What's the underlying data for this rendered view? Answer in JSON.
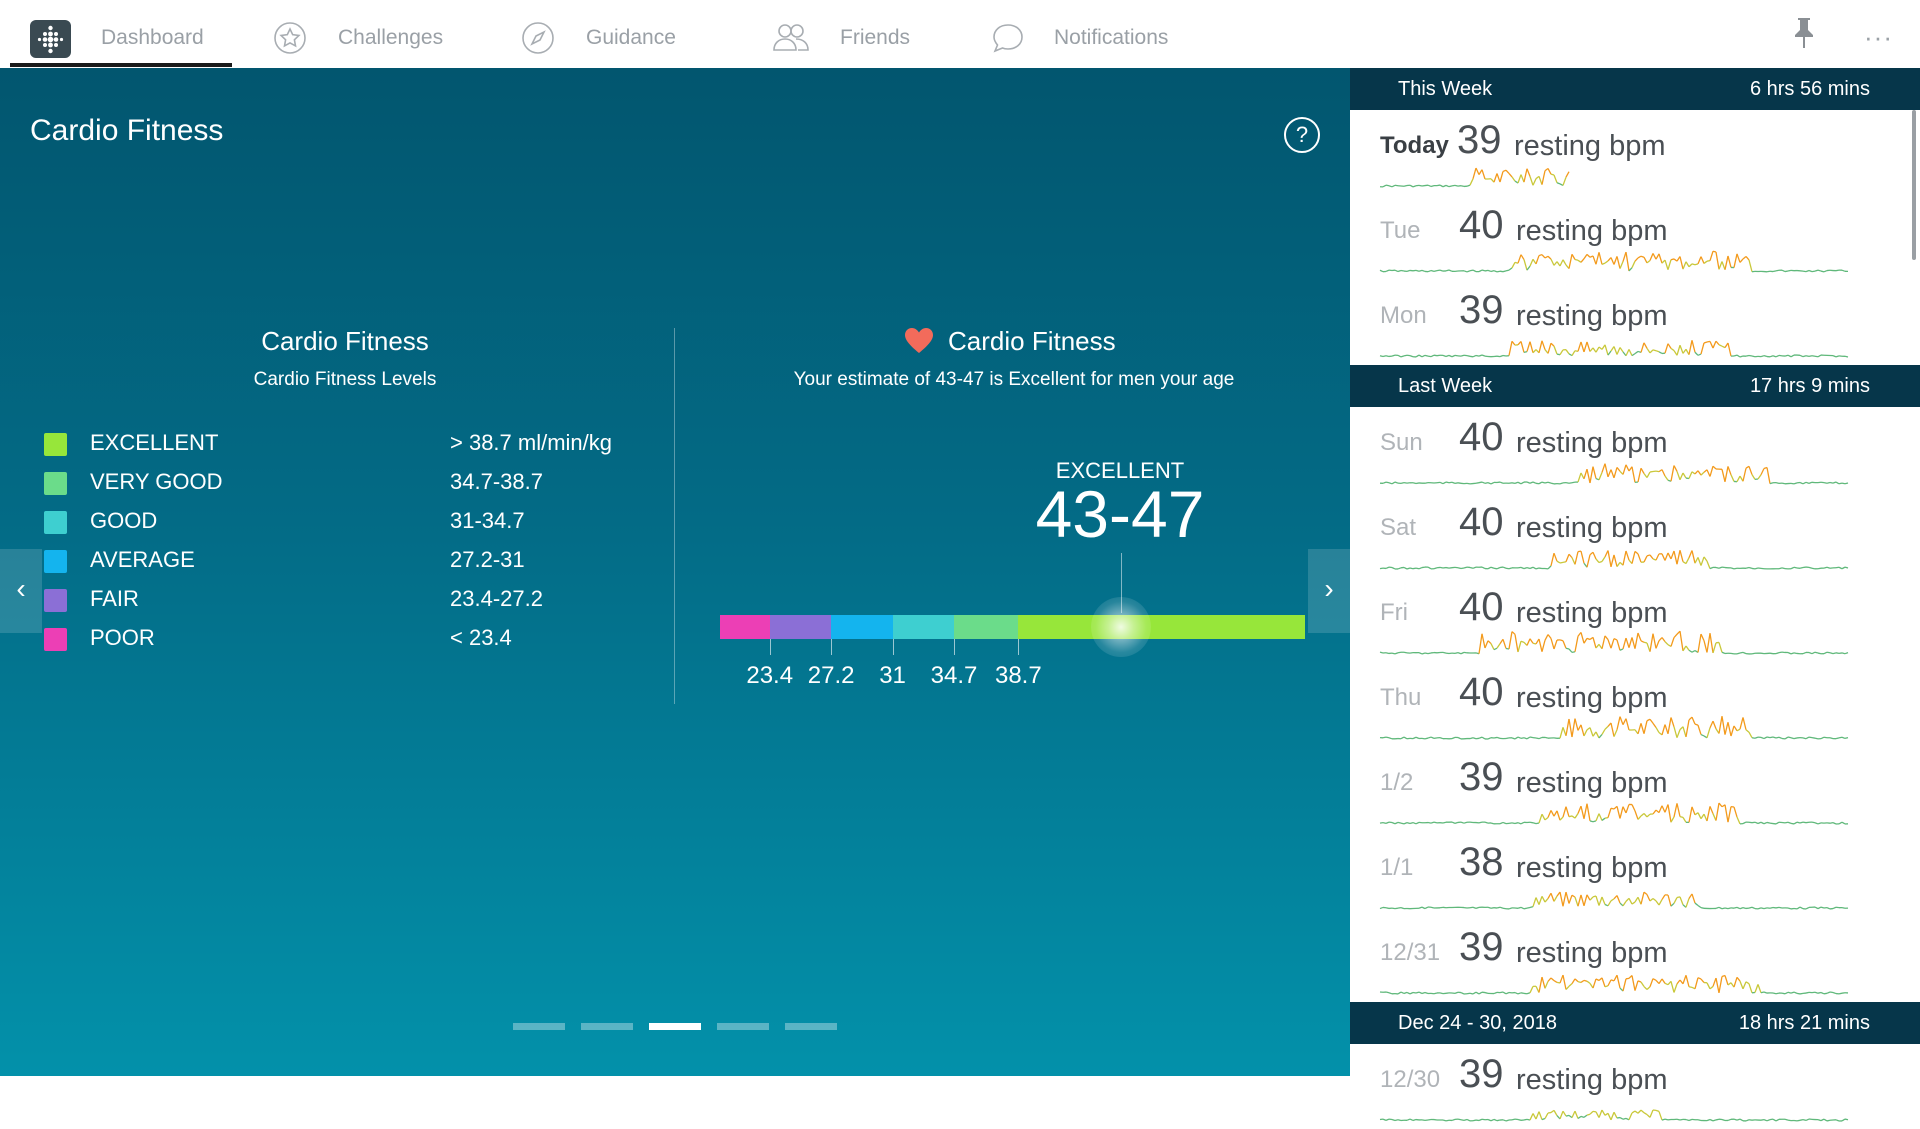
{
  "nav": {
    "items": [
      {
        "label": "Dashboard",
        "icon": "fitbit-logo-icon"
      },
      {
        "label": "Challenges",
        "icon": "star-badge-icon"
      },
      {
        "label": "Guidance",
        "icon": "compass-icon"
      },
      {
        "label": "Friends",
        "icon": "friends-icon"
      },
      {
        "label": "Notifications",
        "icon": "chat-bubble-icon"
      }
    ],
    "more": "···"
  },
  "main": {
    "title": "Cardio Fitness",
    "help": "?",
    "prev": "‹",
    "next": "›",
    "levels": {
      "title": "Cardio Fitness",
      "subtitle": "Cardio Fitness Levels",
      "rows": [
        {
          "name": "EXCELLENT",
          "range": "> 38.7 ml/min/kg",
          "color": "#97e63a"
        },
        {
          "name": "VERY GOOD",
          "range": "34.7-38.7",
          "color": "#6bdc8a"
        },
        {
          "name": "GOOD",
          "range": "31-34.7",
          "color": "#3ecfd0"
        },
        {
          "name": "AVERAGE",
          "range": "27.2-31",
          "color": "#14b4ee"
        },
        {
          "name": "FAIR",
          "range": "23.4-27.2",
          "color": "#8b6fd6"
        },
        {
          "name": "POOR",
          "range": "< 23.4",
          "color": "#ec3fb5"
        }
      ]
    },
    "estimate": {
      "title": "Cardio Fitness",
      "subtitle": "Your estimate of 43-47 is Excellent for men your age",
      "level": "EXCELLENT",
      "range": "43-47",
      "heart_color": "#f26b5b",
      "scale": {
        "ticks": [
          "23.4",
          "27.2",
          "31",
          "34.7",
          "38.7"
        ],
        "segments": [
          {
            "color": "#ec3fb5",
            "share": 0.085
          },
          {
            "color": "#8b6fd6",
            "share": 0.105
          },
          {
            "color": "#14b4ee",
            "share": 0.105
          },
          {
            "color": "#3ecfd0",
            "share": 0.105
          },
          {
            "color": "#6bdc8a",
            "share": 0.11
          },
          {
            "color": "#97e63a",
            "share": 0.49
          }
        ],
        "marker_fraction": 0.685
      }
    },
    "pages": 5,
    "active_page": 2
  },
  "side": {
    "weeks": [
      {
        "label": "This Week",
        "duration": "6 hrs 56 mins",
        "days": [
          {
            "day": "Today",
            "bpm": "39",
            "unit": "resting bpm",
            "today": true
          },
          {
            "day": "Tue",
            "bpm": "40",
            "unit": "resting bpm"
          },
          {
            "day": "Mon",
            "bpm": "39",
            "unit": "resting bpm"
          }
        ]
      },
      {
        "label": "Last Week",
        "duration": "17 hrs 9 mins",
        "days": [
          {
            "day": "Sun",
            "bpm": "40",
            "unit": "resting bpm"
          },
          {
            "day": "Sat",
            "bpm": "40",
            "unit": "resting bpm"
          },
          {
            "day": "Fri",
            "bpm": "40",
            "unit": "resting bpm"
          },
          {
            "day": "Thu",
            "bpm": "40",
            "unit": "resting bpm"
          },
          {
            "day": "1/2",
            "bpm": "39",
            "unit": "resting bpm"
          },
          {
            "day": "1/1",
            "bpm": "38",
            "unit": "resting bpm"
          },
          {
            "day": "12/31",
            "bpm": "39",
            "unit": "resting bpm"
          }
        ]
      },
      {
        "label": "Dec 24 - 30, 2018",
        "duration": "18 hrs 21 mins",
        "days": [
          {
            "day": "12/30",
            "bpm": "39",
            "unit": "resting bpm"
          }
        ]
      }
    ]
  }
}
